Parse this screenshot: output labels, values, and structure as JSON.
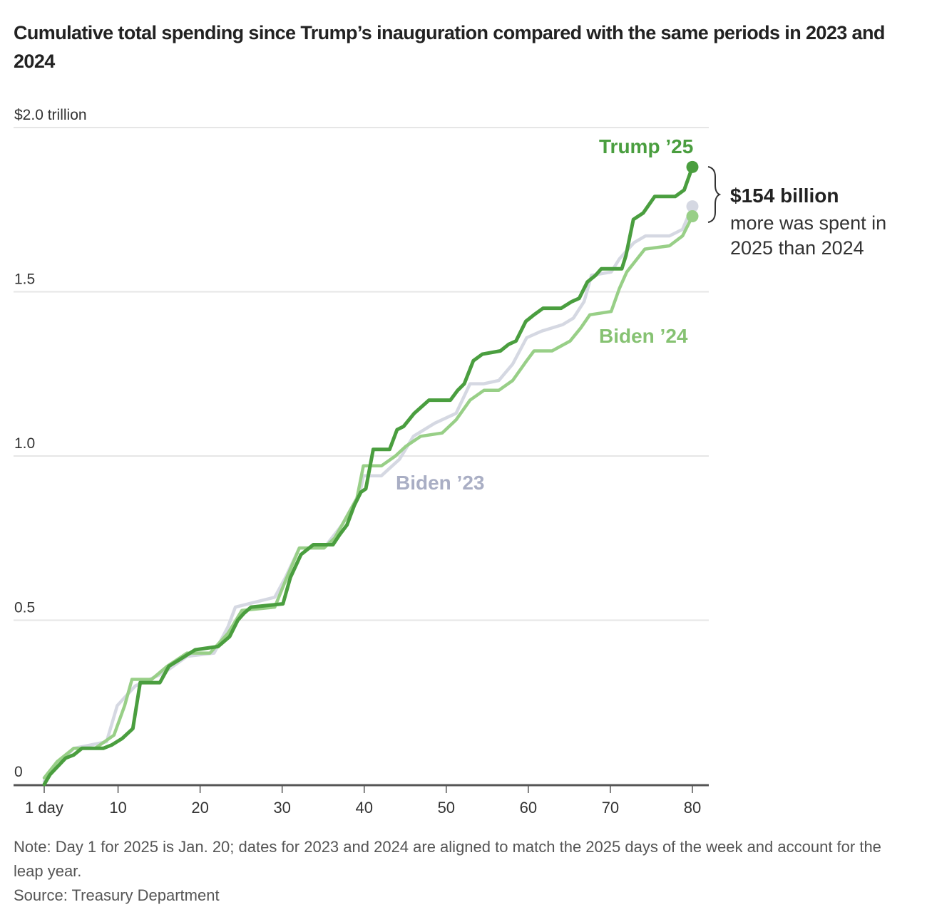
{
  "chart_data": {
    "type": "line",
    "title": "Cumulative total spending since Trump’s inauguration compared with the same periods in 2023 and 2024",
    "xlabel": "",
    "ylabel": "",
    "y_unit_label": "$2.0 trillion",
    "xlim": [
      1,
      80
    ],
    "ylim": [
      0,
      2.0
    ],
    "grid": true,
    "x_ticks": [
      {
        "value": 1,
        "label": "1 day"
      },
      {
        "value": 10,
        "label": "10"
      },
      {
        "value": 20,
        "label": "20"
      },
      {
        "value": 30,
        "label": "30"
      },
      {
        "value": 40,
        "label": "40"
      },
      {
        "value": 50,
        "label": "50"
      },
      {
        "value": 60,
        "label": "60"
      },
      {
        "value": 70,
        "label": "70"
      },
      {
        "value": 80,
        "label": "80"
      }
    ],
    "y_ticks": [
      {
        "value": 0,
        "label": "0"
      },
      {
        "value": 0.5,
        "label": "0.5"
      },
      {
        "value": 1.0,
        "label": "1.0"
      },
      {
        "value": 1.5,
        "label": "1.5"
      },
      {
        "value": 2.0,
        "label": "$2.0 trillion"
      }
    ],
    "series": [
      {
        "name": "Biden ’23",
        "label": "Biden ’23",
        "color": "#d5d8e2",
        "label_color": "#a9aec4",
        "end_value": 1.76,
        "points": [
          [
            1,
            0.01
          ],
          [
            4.6,
            0.11
          ],
          [
            8.6,
            0.13
          ],
          [
            9.9,
            0.24
          ],
          [
            12.1,
            0.3
          ],
          [
            15.6,
            0.34
          ],
          [
            18.4,
            0.39
          ],
          [
            21.7,
            0.4
          ],
          [
            23.4,
            0.48
          ],
          [
            24.3,
            0.54
          ],
          [
            29.1,
            0.57
          ],
          [
            30.4,
            0.63
          ],
          [
            32.1,
            0.72
          ],
          [
            35.1,
            0.72
          ],
          [
            37.3,
            0.79
          ],
          [
            39.5,
            0.89
          ],
          [
            39.9,
            0.94
          ],
          [
            42.1,
            0.94
          ],
          [
            44.3,
            0.99
          ],
          [
            46.0,
            1.06
          ],
          [
            48.6,
            1.1
          ],
          [
            51.2,
            1.13
          ],
          [
            52.9,
            1.22
          ],
          [
            54.6,
            1.22
          ],
          [
            56.4,
            1.23
          ],
          [
            58.1,
            1.28
          ],
          [
            59.8,
            1.36
          ],
          [
            61.6,
            1.38
          ],
          [
            64.2,
            1.4
          ],
          [
            65.5,
            1.42
          ],
          [
            66.8,
            1.47
          ],
          [
            67.7,
            1.55
          ],
          [
            70.1,
            1.56
          ],
          [
            71.1,
            1.6
          ],
          [
            72.9,
            1.65
          ],
          [
            74.3,
            1.67
          ],
          [
            77.2,
            1.67
          ],
          [
            78.8,
            1.69
          ],
          [
            80,
            1.76
          ]
        ]
      },
      {
        "name": "Biden ’24",
        "label": "Biden ’24",
        "color": "#98cf87",
        "label_color": "#86c272",
        "end_value": 1.73,
        "points": [
          [
            1,
            0.02
          ],
          [
            2.6,
            0.07
          ],
          [
            4.6,
            0.11
          ],
          [
            7.2,
            0.11
          ],
          [
            9.5,
            0.15
          ],
          [
            10.8,
            0.24
          ],
          [
            11.7,
            0.32
          ],
          [
            14.1,
            0.32
          ],
          [
            16.0,
            0.36
          ],
          [
            18.4,
            0.4
          ],
          [
            21.2,
            0.4
          ],
          [
            23.4,
            0.46
          ],
          [
            25.1,
            0.53
          ],
          [
            29.1,
            0.54
          ],
          [
            30.4,
            0.62
          ],
          [
            32.1,
            0.72
          ],
          [
            35.1,
            0.72
          ],
          [
            36.4,
            0.75
          ],
          [
            38.2,
            0.83
          ],
          [
            39.1,
            0.87
          ],
          [
            39.9,
            0.97
          ],
          [
            42.1,
            0.97
          ],
          [
            43.8,
            1.0
          ],
          [
            45.1,
            1.03
          ],
          [
            46.9,
            1.06
          ],
          [
            49.5,
            1.07
          ],
          [
            51.2,
            1.11
          ],
          [
            52.9,
            1.17
          ],
          [
            54.6,
            1.2
          ],
          [
            56.4,
            1.2
          ],
          [
            58.1,
            1.23
          ],
          [
            59.8,
            1.29
          ],
          [
            60.7,
            1.32
          ],
          [
            62.9,
            1.32
          ],
          [
            65.1,
            1.35
          ],
          [
            66.4,
            1.39
          ],
          [
            67.5,
            1.43
          ],
          [
            70.1,
            1.44
          ],
          [
            71.1,
            1.51
          ],
          [
            72.0,
            1.56
          ],
          [
            74.2,
            1.63
          ],
          [
            77.2,
            1.64
          ],
          [
            78.8,
            1.67
          ],
          [
            80,
            1.73
          ]
        ]
      },
      {
        "name": "Trump ’25",
        "label": "Trump ’25",
        "color": "#4a9e3f",
        "label_color": "#4a9e3f",
        "end_value": 1.88,
        "points": [
          [
            1,
            0.0
          ],
          [
            1.7,
            0.03
          ],
          [
            3.6,
            0.08
          ],
          [
            4.6,
            0.09
          ],
          [
            5.6,
            0.11
          ],
          [
            8.2,
            0.11
          ],
          [
            9.2,
            0.12
          ],
          [
            10.5,
            0.14
          ],
          [
            11.8,
            0.17
          ],
          [
            12.7,
            0.31
          ],
          [
            15.1,
            0.31
          ],
          [
            16.2,
            0.36
          ],
          [
            17.5,
            0.38
          ],
          [
            19.4,
            0.41
          ],
          [
            22.2,
            0.42
          ],
          [
            23.6,
            0.45
          ],
          [
            24.6,
            0.5
          ],
          [
            25.3,
            0.52
          ],
          [
            26.2,
            0.54
          ],
          [
            30.1,
            0.55
          ],
          [
            31.0,
            0.63
          ],
          [
            32.3,
            0.7
          ],
          [
            33.8,
            0.73
          ],
          [
            36.2,
            0.73
          ],
          [
            37.0,
            0.76
          ],
          [
            37.9,
            0.79
          ],
          [
            38.8,
            0.85
          ],
          [
            39.6,
            0.89
          ],
          [
            40.2,
            0.9
          ],
          [
            41.1,
            1.02
          ],
          [
            43.1,
            1.02
          ],
          [
            44.0,
            1.08
          ],
          [
            44.8,
            1.09
          ],
          [
            46.1,
            1.13
          ],
          [
            47.9,
            1.17
          ],
          [
            50.5,
            1.17
          ],
          [
            51.4,
            1.2
          ],
          [
            52.2,
            1.22
          ],
          [
            53.3,
            1.29
          ],
          [
            54.4,
            1.31
          ],
          [
            56.6,
            1.32
          ],
          [
            57.6,
            1.34
          ],
          [
            58.5,
            1.35
          ],
          [
            59.7,
            1.41
          ],
          [
            60.7,
            1.43
          ],
          [
            61.8,
            1.45
          ],
          [
            64.0,
            1.45
          ],
          [
            65.3,
            1.47
          ],
          [
            66.2,
            1.48
          ],
          [
            67.2,
            1.53
          ],
          [
            68.2,
            1.55
          ],
          [
            68.9,
            1.57
          ],
          [
            71.4,
            1.57
          ],
          [
            71.9,
            1.61
          ],
          [
            72.8,
            1.72
          ],
          [
            74.0,
            1.74
          ],
          [
            75.4,
            1.79
          ],
          [
            77.9,
            1.79
          ],
          [
            79.0,
            1.81
          ],
          [
            80,
            1.88
          ]
        ]
      }
    ],
    "annotation": {
      "amount": "$154 billion",
      "line1": "more was spent in",
      "line2": "2025 than 2024",
      "bracket_from": "Trump ’25",
      "bracket_to": "Biden ’24"
    }
  },
  "footer": {
    "note": "Note: Day 1 for 2025 is Jan. 20; dates for 2023 and 2024 are aligned to match the 2025 days of the week and account for the leap year.",
    "source": "Source: Treasury Department"
  }
}
